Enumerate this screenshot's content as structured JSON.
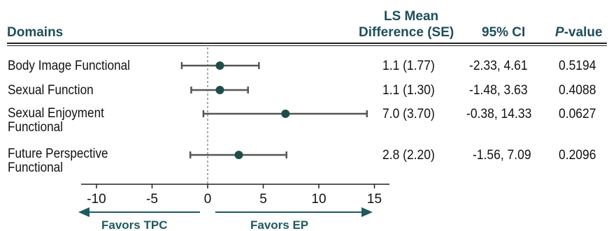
{
  "headers": {
    "domains": "Domains",
    "ls_mean_line1": "LS Mean",
    "ls_mean_line2": "Difference (SE)",
    "ci": "95% CI",
    "p_italic": "P",
    "p_rest": "-value"
  },
  "rows": [
    {
      "domain_line1": "Body Image Functional",
      "domain_line2": "",
      "ls_mean": "1.1 (1.77)",
      "ci": "-2.33, 4.61",
      "p": "0.5194"
    },
    {
      "domain_line1": "Sexual Function",
      "domain_line2": "",
      "ls_mean": "1.1 (1.30)",
      "ci": "-1.48, 3.63",
      "p": "0.4088"
    },
    {
      "domain_line1": "Sexual Enjoyment",
      "domain_line2": "Functional",
      "ls_mean": "7.0 (3.70)",
      "ci": "-0.38, 14.33",
      "p": "0.0627"
    },
    {
      "domain_line1": "Future Perspective",
      "domain_line2": "Functional",
      "ls_mean": "2.8 (2.20)",
      "ci": "-1.56, 7.09",
      "p": "0.2096"
    }
  ],
  "favors": {
    "left": "Favors TPC",
    "right": "Favors EP"
  },
  "colors": {
    "marker": "#1f4e4a",
    "whisker": "#555555",
    "header": "#1f4e5a",
    "arrow": "#1f5a5e"
  },
  "chart_data": {
    "type": "forest",
    "categories": [
      "Body Image Functional",
      "Sexual Function",
      "Sexual Enjoyment Functional",
      "Future Perspective Functional"
    ],
    "values": [
      1.1,
      1.1,
      7.0,
      2.8
    ],
    "ci_low": [
      -2.33,
      -1.48,
      -0.38,
      -1.56
    ],
    "ci_high": [
      4.61,
      3.63,
      14.33,
      7.09
    ],
    "xlim": [
      -11,
      16
    ],
    "xticks": [
      -10,
      -5,
      0,
      5,
      10,
      15
    ],
    "reference_line": 0
  }
}
